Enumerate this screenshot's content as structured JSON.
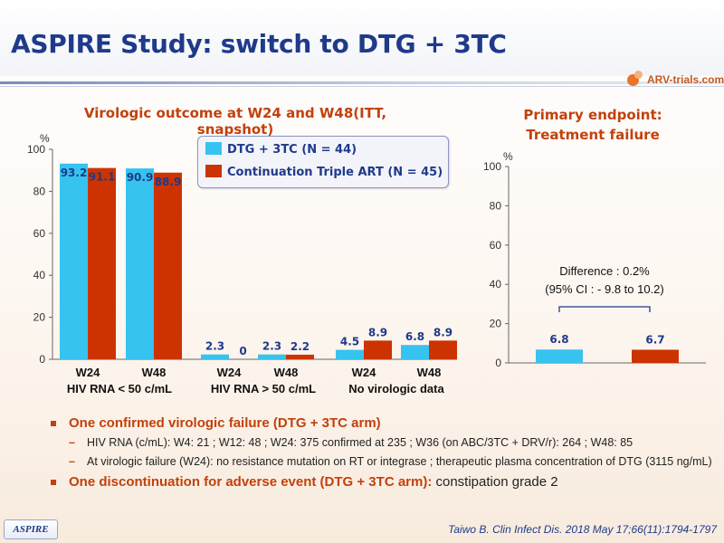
{
  "title": "ASPIRE Study: switch to DTG + 3TC",
  "logo": "ARV-trials.com",
  "colors": {
    "dtg": "#36c3ef",
    "triple": "#cc3300",
    "title": "#1f3a8a",
    "accent": "#c2410c"
  },
  "chart_data": [
    {
      "type": "bar",
      "title": "Virologic outcome at W24 and W48(ITT, snapshot)",
      "ylabel": "%",
      "ylim": [
        0,
        100
      ],
      "yticks": [
        0,
        20,
        40,
        60,
        80,
        100
      ],
      "legend": {
        "placement": "top-right"
      },
      "categories": [
        "W24",
        "W48",
        "W24",
        "W48",
        "W24",
        "W48"
      ],
      "group_labels": [
        "HIV RNA < 50 c/mL",
        "HIV RNA > 50 c/mL",
        "No virologic data"
      ],
      "series": [
        {
          "name": "DTG + 3TC (N = 44)",
          "values": [
            93.2,
            90.9,
            2.3,
            2.3,
            4.5,
            6.8
          ],
          "labels": [
            "93.2",
            "90.9",
            "2.3",
            "2.3",
            "4.5",
            "6.8"
          ]
        },
        {
          "name": "Continuation  Triple  ART (N = 45)",
          "values": [
            91.1,
            88.9,
            0,
            2.2,
            8.9,
            8.9
          ],
          "labels": [
            "91.1",
            "88.9",
            "0",
            "2.2",
            "8.9",
            "8.9"
          ]
        }
      ]
    },
    {
      "type": "bar",
      "title": "Primary endpoint: Treatment failure",
      "title_lines": [
        "Primary endpoint:",
        "Treatment failure"
      ],
      "ylabel": "%",
      "ylim": [
        0,
        100
      ],
      "yticks": [
        0,
        20,
        40,
        60,
        80,
        100
      ],
      "series": [
        {
          "name": "DTG + 3TC (N = 44)",
          "values": [
            6.8
          ],
          "labels": [
            "6.8"
          ]
        },
        {
          "name": "Continuation  Triple  ART (N = 45)",
          "values": [
            6.7
          ],
          "labels": [
            "6.7"
          ]
        }
      ],
      "annotation": [
        "Difference : 0.2%",
        "(95% CI : - 9.8 to 10.2)"
      ]
    }
  ],
  "bullets": [
    {
      "text": "One confirmed virologic failure (DTG + 3TC arm)",
      "plain": ""
    },
    {
      "text": "HIV RNA (c/mL): W4: 21 ; W12: 48 ; W24: 375 confirmed at 235 ; W36 (on ABC/3TC + DRV/r): 264 ; W48: 85"
    },
    {
      "text": "At virologic failure (W24): no resistance mutation on RT or integrase ; therapeutic plasma concentration of DTG (3115 ng/mL)"
    },
    {
      "text": "One discontinuation for adverse event (DTG + 3TC arm):",
      "plain": "constipation grade 2"
    }
  ],
  "footer_tag": "ASPIRE",
  "citation": "Taiwo B. Clin Infect Dis. 2018 May 17;66(11):1794-1797"
}
